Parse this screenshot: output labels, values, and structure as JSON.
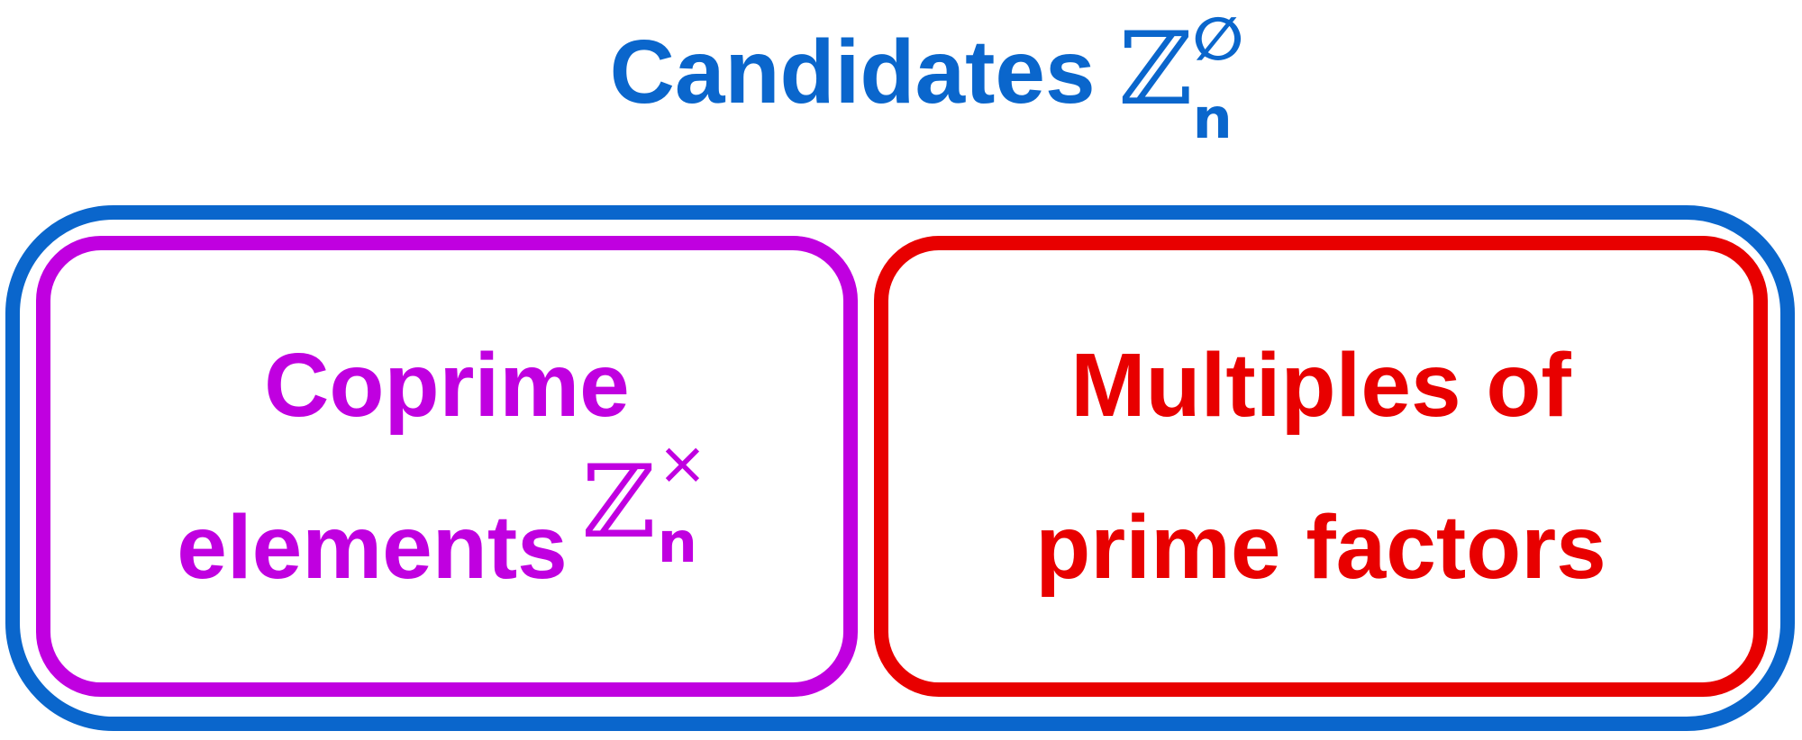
{
  "colors": {
    "outer": "#0a66cc",
    "coprime": "#c000e0",
    "multiples": "#e80000"
  },
  "title": {
    "text": "Candidates",
    "math": {
      "base": "ℤ",
      "superscript": "∅",
      "subscript": "n"
    }
  },
  "left_box": {
    "line1": "Coprime",
    "line2": "elements",
    "math": {
      "base": "ℤ",
      "superscript": "×",
      "subscript": "n"
    }
  },
  "right_box": {
    "line1": "Multiples of",
    "line2": "prime factors"
  }
}
